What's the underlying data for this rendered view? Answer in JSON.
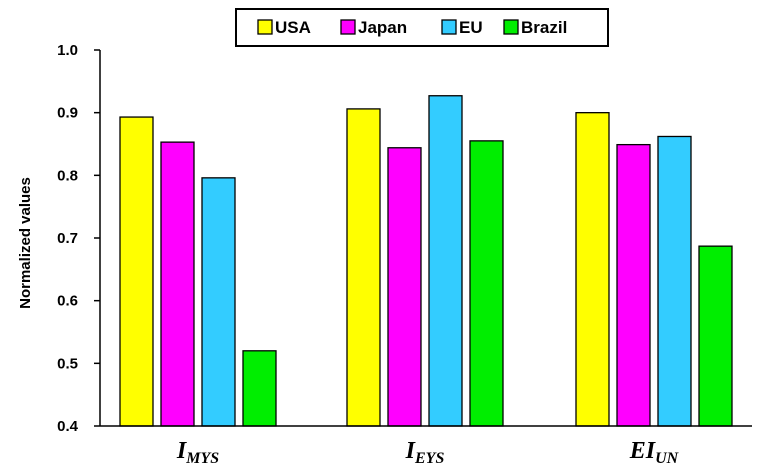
{
  "chart_data": {
    "type": "bar",
    "categories": [
      {
        "main": "I",
        "sub": "MYS"
      },
      {
        "main": "I",
        "sub": "EYS"
      },
      {
        "main": "EI",
        "sub": "UN"
      }
    ],
    "series": [
      {
        "name": "USA",
        "color": "#ffff00",
        "values": [
          0.893,
          0.906,
          0.9
        ]
      },
      {
        "name": "Japan",
        "color": "#ff00ff",
        "values": [
          0.853,
          0.844,
          0.849
        ]
      },
      {
        "name": "EU",
        "color": "#33ccff",
        "values": [
          0.796,
          0.927,
          0.862
        ]
      },
      {
        "name": "Brazil",
        "color": "#00ee00",
        "values": [
          0.52,
          0.855,
          0.687
        ]
      }
    ],
    "ylabel": "Normalized values",
    "ylim": [
      0.4,
      1.0
    ],
    "yticks": [
      "0.4",
      "0.5",
      "0.6",
      "0.7",
      "0.8",
      "0.9",
      "1.0"
    ],
    "grid": false,
    "legend_position": "top-center"
  }
}
